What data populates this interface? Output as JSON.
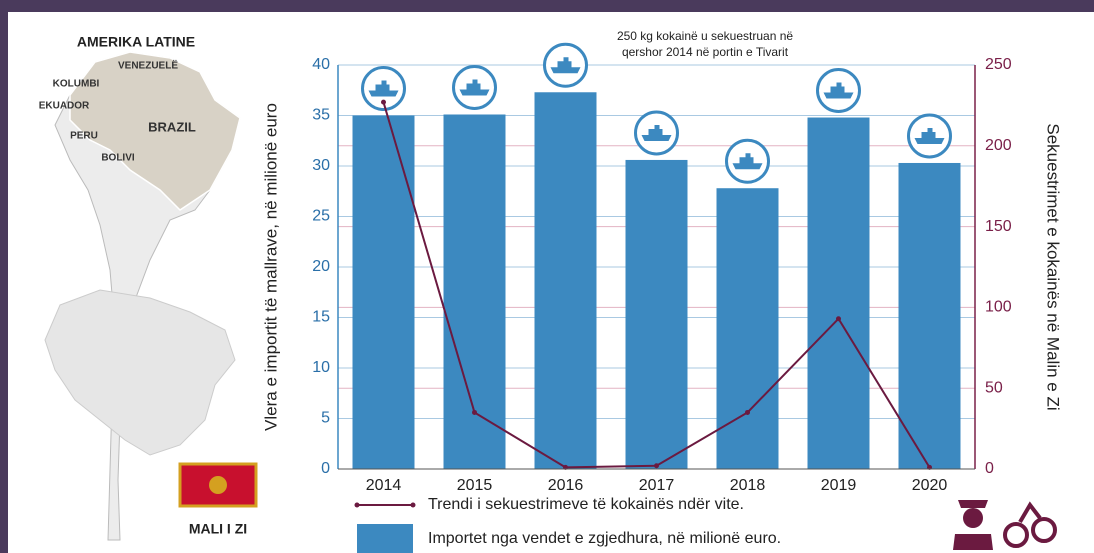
{
  "chart_data": {
    "type": "bar",
    "annotation": [
      "250 kg kokainë u sekuestruan në",
      "qershor 2014 në portin e Tivarit"
    ],
    "y_label": "Vlera e importit të mallrave, në milionë euro",
    "y2_label": "Sekuestrimet e kokainës në Malin e Zi",
    "categories": [
      "2014",
      "2015",
      "2016",
      "2017",
      "2018",
      "2019",
      "2020"
    ],
    "series": [
      {
        "name": "Importet nga vendet e zgjedhura, në milionë euro.",
        "color": "#3c89c0",
        "values": [
          35.0,
          35.1,
          37.3,
          30.6,
          27.8,
          34.8,
          30.3
        ]
      },
      {
        "name": "Trendi i sekuestrimeve të kokainës ndër vite.",
        "color": "#6b1a40",
        "axis": "y2",
        "values": [
          227,
          35,
          1,
          2,
          35,
          93,
          1
        ]
      }
    ],
    "ylim": [
      0,
      40
    ],
    "yticks": [
      0,
      5,
      10,
      15,
      20,
      25,
      30,
      35,
      40
    ],
    "y2lim": [
      0,
      250
    ],
    "y2ticks": [
      0,
      50,
      100,
      150,
      200,
      250
    ],
    "grid": true
  },
  "map": {
    "title": "AMERIKA LATINE",
    "countries": [
      "VENEZUELË",
      "KOLUMBI",
      "EKUADOR",
      "BRAZIL",
      "PERU",
      "BOLIVI"
    ],
    "country_label": "MALI I ZI"
  }
}
